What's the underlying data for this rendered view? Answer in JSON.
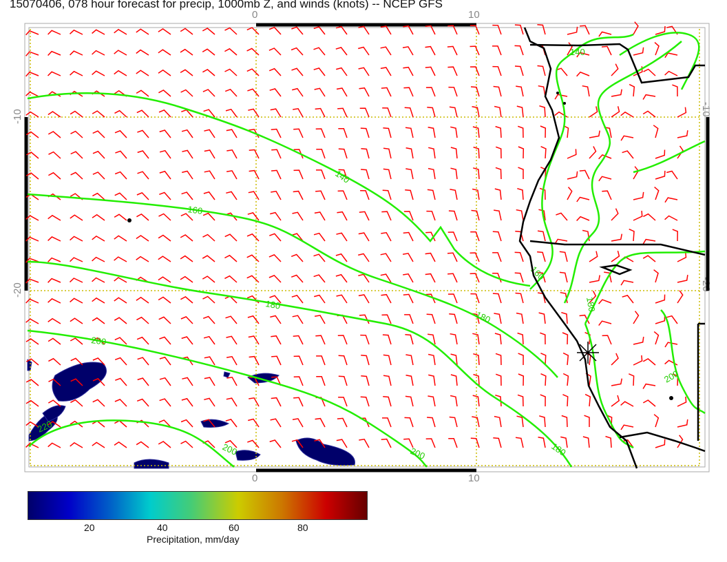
{
  "title": "15070406, 078 hour forecast for precip, 1000mb Z, and winds (knots) -- NCEP GFS",
  "axes": {
    "x_ticks": [
      "0",
      "10"
    ],
    "y_ticks": [
      "-10",
      "-20"
    ]
  },
  "contours": {
    "levels": [
      "140",
      "160",
      "180",
      "200",
      "220"
    ],
    "labels": [
      "140",
      "160",
      "180",
      "200",
      "220",
      "140",
      "160",
      "180",
      "180",
      "200",
      "200",
      "200",
      "180"
    ]
  },
  "colorbar": {
    "label": "Precipitation, mm/day",
    "ticks": [
      "20",
      "40",
      "60",
      "80"
    ],
    "range": [
      0,
      100
    ],
    "colormap": "jet"
  },
  "colors": {
    "contour": "#22ee00",
    "wind": "#ff0000",
    "coast": "#000000",
    "grid": "#ccbb00",
    "precip_low": "#00006a"
  }
}
